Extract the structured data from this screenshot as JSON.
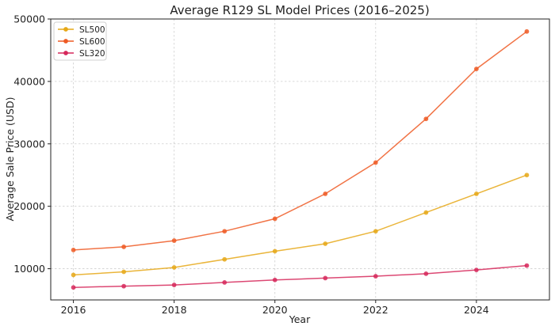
{
  "chart_data": {
    "type": "line",
    "title": "Average R129 SL Model Prices (2016–2025)",
    "xlabel": "Year",
    "ylabel": "Average Sale Price (USD)",
    "xlim": [
      2015.55,
      2025.45
    ],
    "ylim": [
      5000,
      50000
    ],
    "x_ticks": [
      2016,
      2018,
      2020,
      2022,
      2024
    ],
    "y_ticks": [
      10000,
      20000,
      30000,
      40000,
      50000
    ],
    "grid": true,
    "legend_position": "top-left",
    "x": [
      2016,
      2017,
      2018,
      2019,
      2020,
      2021,
      2022,
      2023,
      2024,
      2025
    ],
    "series": [
      {
        "name": "SL500",
        "color": "#E6A817",
        "values": [
          9000,
          9500,
          10200,
          11500,
          12800,
          14000,
          16000,
          19000,
          22000,
          25000
        ]
      },
      {
        "name": "SL600",
        "color": "#EE5A24",
        "values": [
          13000,
          13500,
          14500,
          16000,
          18000,
          22000,
          27000,
          34000,
          42000,
          48000
        ]
      },
      {
        "name": "SL320",
        "color": "#D6285B",
        "values": [
          7000,
          7200,
          7400,
          7800,
          8200,
          8500,
          8800,
          9200,
          9800,
          10500
        ]
      }
    ]
  }
}
